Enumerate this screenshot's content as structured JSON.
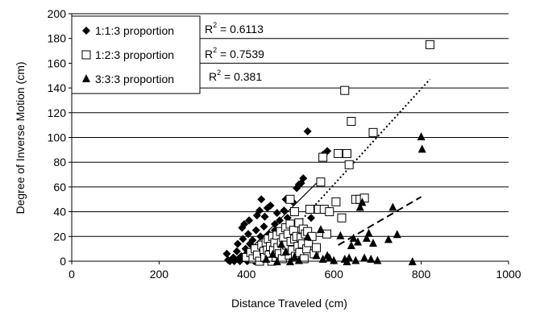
{
  "chart_data": {
    "type": "scatter",
    "xlabel": "Distance Traveled (cm)",
    "ylabel": "Degree of Inverse Motion (cm)",
    "xlim": [
      0,
      1000
    ],
    "ylim": [
      0,
      200
    ],
    "x_ticks": [
      "0",
      "200",
      "400",
      "600",
      "800",
      "1000"
    ],
    "y_ticks": [
      "0",
      "20",
      "40",
      "60",
      "80",
      "100",
      "120",
      "140",
      "160",
      "180",
      "200"
    ],
    "grid": "horizontal",
    "legend_position": "top-left",
    "series": [
      {
        "name": "1:1:3 proportion",
        "marker": "diamond",
        "color": "#000000",
        "r2_label": "R",
        "r2_sup": "2",
        "r2_value": " = 0.6113",
        "trendline": {
          "style": "solid",
          "x": [
            380,
            560
          ],
          "y": [
            0,
            63
          ]
        },
        "points": [
          [
            355,
            6
          ],
          [
            358,
            1
          ],
          [
            362,
            0
          ],
          [
            370,
            3
          ],
          [
            372,
            0
          ],
          [
            378,
            8
          ],
          [
            380,
            14
          ],
          [
            382,
            2
          ],
          [
            385,
            0
          ],
          [
            388,
            4
          ],
          [
            390,
            27
          ],
          [
            392,
            18
          ],
          [
            395,
            30
          ],
          [
            398,
            10
          ],
          [
            400,
            6
          ],
          [
            402,
            0
          ],
          [
            404,
            22
          ],
          [
            406,
            33
          ],
          [
            408,
            14
          ],
          [
            410,
            2
          ],
          [
            412,
            8
          ],
          [
            414,
            17
          ],
          [
            416,
            4
          ],
          [
            418,
            0
          ],
          [
            420,
            11
          ],
          [
            422,
            25
          ],
          [
            424,
            37
          ],
          [
            426,
            6
          ],
          [
            428,
            1
          ],
          [
            430,
            41
          ],
          [
            432,
            20
          ],
          [
            434,
            50
          ],
          [
            436,
            12
          ],
          [
            438,
            4
          ],
          [
            440,
            28
          ],
          [
            442,
            36
          ],
          [
            444,
            9
          ],
          [
            446,
            2
          ],
          [
            448,
            43
          ],
          [
            450,
            16
          ],
          [
            452,
            22
          ],
          [
            455,
            45
          ],
          [
            458,
            7
          ],
          [
            460,
            14
          ],
          [
            462,
            18
          ],
          [
            465,
            30
          ],
          [
            468,
            5
          ],
          [
            470,
            39
          ],
          [
            473,
            24
          ],
          [
            476,
            33
          ],
          [
            480,
            12
          ],
          [
            483,
            2
          ],
          [
            486,
            41
          ],
          [
            490,
            50
          ],
          [
            494,
            35
          ],
          [
            498,
            20
          ],
          [
            502,
            27
          ],
          [
            506,
            48
          ],
          [
            510,
            11
          ],
          [
            515,
            59
          ],
          [
            520,
            62
          ],
          [
            525,
            63
          ],
          [
            530,
            67
          ],
          [
            540,
            105
          ],
          [
            548,
            35
          ],
          [
            575,
            86
          ],
          [
            585,
            89
          ],
          [
            465,
            25
          ],
          [
            470,
            21
          ]
        ]
      },
      {
        "name": "1:2:3 proportion",
        "marker": "square",
        "color": "#000000",
        "r2_label": "R",
        "r2_sup": "2",
        "r2_value": " = 0.7539",
        "trendline": {
          "style": "dotted",
          "x": [
            440,
            820
          ],
          "y": [
            0,
            147
          ]
        },
        "points": [
          [
            400,
            3
          ],
          [
            410,
            7
          ],
          [
            415,
            2
          ],
          [
            420,
            10
          ],
          [
            425,
            5
          ],
          [
            430,
            0
          ],
          [
            435,
            13
          ],
          [
            440,
            8
          ],
          [
            442,
            3
          ],
          [
            445,
            15
          ],
          [
            448,
            9
          ],
          [
            450,
            18
          ],
          [
            452,
            5
          ],
          [
            455,
            12
          ],
          [
            458,
            0
          ],
          [
            460,
            20
          ],
          [
            462,
            9
          ],
          [
            465,
            15
          ],
          [
            468,
            3
          ],
          [
            470,
            21
          ],
          [
            472,
            11
          ],
          [
            475,
            6
          ],
          [
            478,
            24
          ],
          [
            480,
            15
          ],
          [
            482,
            2
          ],
          [
            485,
            19
          ],
          [
            488,
            8
          ],
          [
            490,
            27
          ],
          [
            492,
            13
          ],
          [
            495,
            22
          ],
          [
            498,
            5
          ],
          [
            500,
            30
          ],
          [
            502,
            16
          ],
          [
            505,
            9
          ],
          [
            508,
            25
          ],
          [
            510,
            18
          ],
          [
            512,
            4
          ],
          [
            515,
            20
          ],
          [
            518,
            12
          ],
          [
            520,
            31
          ],
          [
            522,
            7
          ],
          [
            525,
            19
          ],
          [
            528,
            14
          ],
          [
            530,
            26
          ],
          [
            532,
            2
          ],
          [
            535,
            22
          ],
          [
            538,
            10
          ],
          [
            540,
            24
          ],
          [
            542,
            15
          ],
          [
            545,
            42
          ],
          [
            550,
            20
          ],
          [
            555,
            6
          ],
          [
            560,
            11
          ],
          [
            565,
            42
          ],
          [
            570,
            64
          ],
          [
            575,
            84
          ],
          [
            578,
            42
          ],
          [
            584,
            22
          ],
          [
            590,
            40
          ],
          [
            605,
            48
          ],
          [
            610,
            87
          ],
          [
            618,
            35
          ],
          [
            625,
            138
          ],
          [
            630,
            87
          ],
          [
            635,
            78
          ],
          [
            640,
            113
          ],
          [
            650,
            50
          ],
          [
            660,
            50
          ],
          [
            670,
            51
          ],
          [
            690,
            104
          ],
          [
            820,
            175
          ],
          [
            500,
            50
          ],
          [
            510,
            40
          ]
        ]
      },
      {
        "name": "3:3:3 proportion",
        "marker": "triangle",
        "color": "#000000",
        "r2_label": "R",
        "r2_sup": "2",
        "r2_value": " = 0.381",
        "trendline": {
          "style": "dashed",
          "x": [
            610,
            800
          ],
          "y": [
            13,
            52
          ]
        },
        "points": [
          [
            445,
            2
          ],
          [
            460,
            6
          ],
          [
            470,
            0
          ],
          [
            480,
            14
          ],
          [
            490,
            8
          ],
          [
            500,
            0
          ],
          [
            510,
            4
          ],
          [
            520,
            1
          ],
          [
            540,
            20
          ],
          [
            560,
            5
          ],
          [
            570,
            26
          ],
          [
            575,
            2
          ],
          [
            585,
            5
          ],
          [
            590,
            3
          ],
          [
            615,
            21
          ],
          [
            625,
            2
          ],
          [
            630,
            0
          ],
          [
            635,
            3
          ],
          [
            640,
            13
          ],
          [
            645,
            19
          ],
          [
            650,
            1
          ],
          [
            655,
            16
          ],
          [
            660,
            44
          ],
          [
            665,
            48
          ],
          [
            670,
            3
          ],
          [
            675,
            19
          ],
          [
            680,
            23
          ],
          [
            685,
            2
          ],
          [
            690,
            15
          ],
          [
            700,
            1
          ],
          [
            725,
            18
          ],
          [
            735,
            44
          ],
          [
            745,
            22
          ],
          [
            780,
            0
          ],
          [
            800,
            101
          ],
          [
            802,
            91
          ],
          [
            600,
            1
          ]
        ]
      }
    ]
  }
}
